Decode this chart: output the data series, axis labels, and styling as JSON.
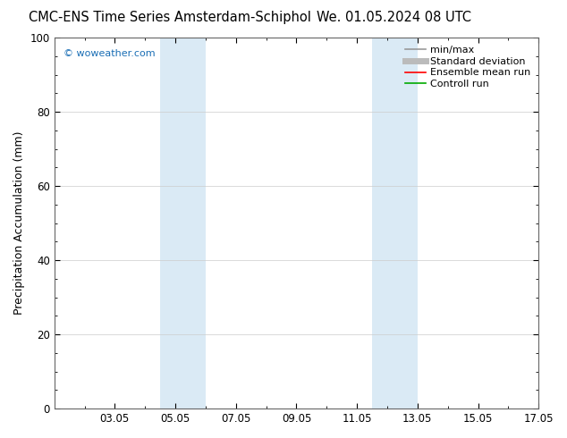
{
  "title_left": "CMC-ENS Time Series Amsterdam-Schiphol",
  "title_right": "We. 01.05.2024 08 UTC",
  "ylabel": "Precipitation Accumulation (mm)",
  "ylim": [
    0,
    100
  ],
  "yticks": [
    0,
    20,
    40,
    60,
    80,
    100
  ],
  "xlim": [
    1,
    17
  ],
  "xtick_labels": [
    "03.05",
    "05.05",
    "07.05",
    "09.05",
    "11.05",
    "13.05",
    "15.05",
    "17.05"
  ],
  "xtick_positions": [
    3,
    5,
    7,
    9,
    11,
    13,
    15,
    17
  ],
  "shaded_bands": [
    {
      "x_start": 4.5,
      "x_end": 6.0,
      "color": "#daeaf5"
    },
    {
      "x_start": 11.5,
      "x_end": 13.0,
      "color": "#daeaf5"
    }
  ],
  "watermark_text": "© woweather.com",
  "watermark_color": "#1a6eb5",
  "legend_entries": [
    {
      "label": "min/max",
      "color": "#999999",
      "lw": 1.2
    },
    {
      "label": "Standard deviation",
      "color": "#bbbbbb",
      "lw": 5.0
    },
    {
      "label": "Ensemble mean run",
      "color": "#ff0000",
      "lw": 1.2
    },
    {
      "label": "Controll run",
      "color": "#00aa00",
      "lw": 1.2
    }
  ],
  "bg_color": "#ffffff",
  "grid_color": "#cccccc",
  "title_fontsize": 10.5,
  "ylabel_fontsize": 9,
  "tick_fontsize": 8.5,
  "legend_fontsize": 8,
  "watermark_fontsize": 8
}
